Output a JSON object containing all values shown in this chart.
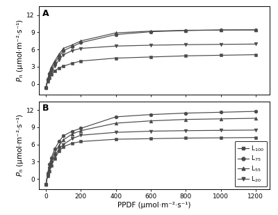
{
  "ppfd": [
    0,
    10,
    20,
    30,
    50,
    75,
    100,
    150,
    200,
    400,
    600,
    800,
    1000,
    1200
  ],
  "panel_A": {
    "L100": [
      -0.6,
      0.4,
      1.0,
      1.6,
      2.3,
      2.8,
      3.1,
      3.6,
      4.0,
      4.5,
      4.7,
      4.9,
      5.0,
      5.1
    ],
    "L75": [
      -0.6,
      0.8,
      1.8,
      2.6,
      3.6,
      4.8,
      5.8,
      6.5,
      7.2,
      8.6,
      9.1,
      9.3,
      9.4,
      9.4
    ],
    "L55": [
      -0.6,
      0.9,
      2.0,
      2.9,
      4.0,
      5.2,
      6.2,
      6.8,
      7.5,
      8.9,
      9.2,
      9.35,
      9.4,
      9.45
    ],
    "L20": [
      -0.6,
      0.7,
      1.5,
      2.2,
      3.1,
      4.2,
      5.1,
      5.8,
      6.2,
      6.6,
      6.75,
      6.85,
      6.9,
      6.95
    ]
  },
  "panel_B": {
    "L100": [
      -1.0,
      0.5,
      1.4,
      2.3,
      3.5,
      4.8,
      5.6,
      6.2,
      6.5,
      6.9,
      7.0,
      7.1,
      7.15,
      7.2
    ],
    "L75": [
      -1.0,
      1.0,
      2.5,
      3.6,
      5.2,
      6.5,
      7.5,
      8.3,
      8.8,
      10.8,
      11.2,
      11.45,
      11.6,
      11.75
    ],
    "L55": [
      -1.0,
      0.9,
      2.2,
      3.2,
      4.6,
      5.8,
      6.8,
      7.8,
      8.4,
      9.7,
      10.1,
      10.35,
      10.45,
      10.55
    ],
    "L20": [
      -1.0,
      0.7,
      1.8,
      2.8,
      4.0,
      5.2,
      6.0,
      7.0,
      7.6,
      8.1,
      8.3,
      8.4,
      8.45,
      8.5
    ]
  },
  "legend_labels": [
    "L$_{100}$",
    "L$_{75}$",
    "L$_{55}$",
    "L$_{20}$"
  ],
  "line_color": "#4a4a4a",
  "marker_styles": [
    "s",
    "o",
    "^",
    "v"
  ],
  "marker_size": 3.5,
  "xlabel": "PPDF (μmol·m⁻²·s⁻¹)",
  "ylabel": "$P_{\\rm n}$ (μmol·m⁻²·s⁻¹)",
  "xlim": [
    -40,
    1280
  ],
  "ylim": [
    -1.8,
    13.5
  ],
  "yticks": [
    0,
    3,
    6,
    9,
    12
  ],
  "xticks": [
    0,
    200,
    400,
    600,
    800,
    1000,
    1200
  ],
  "panel_labels": [
    "A",
    "B"
  ],
  "label_fontsize": 7.5,
  "tick_fontsize": 6.5,
  "legend_fontsize": 6.5,
  "panel_label_fontsize": 9
}
